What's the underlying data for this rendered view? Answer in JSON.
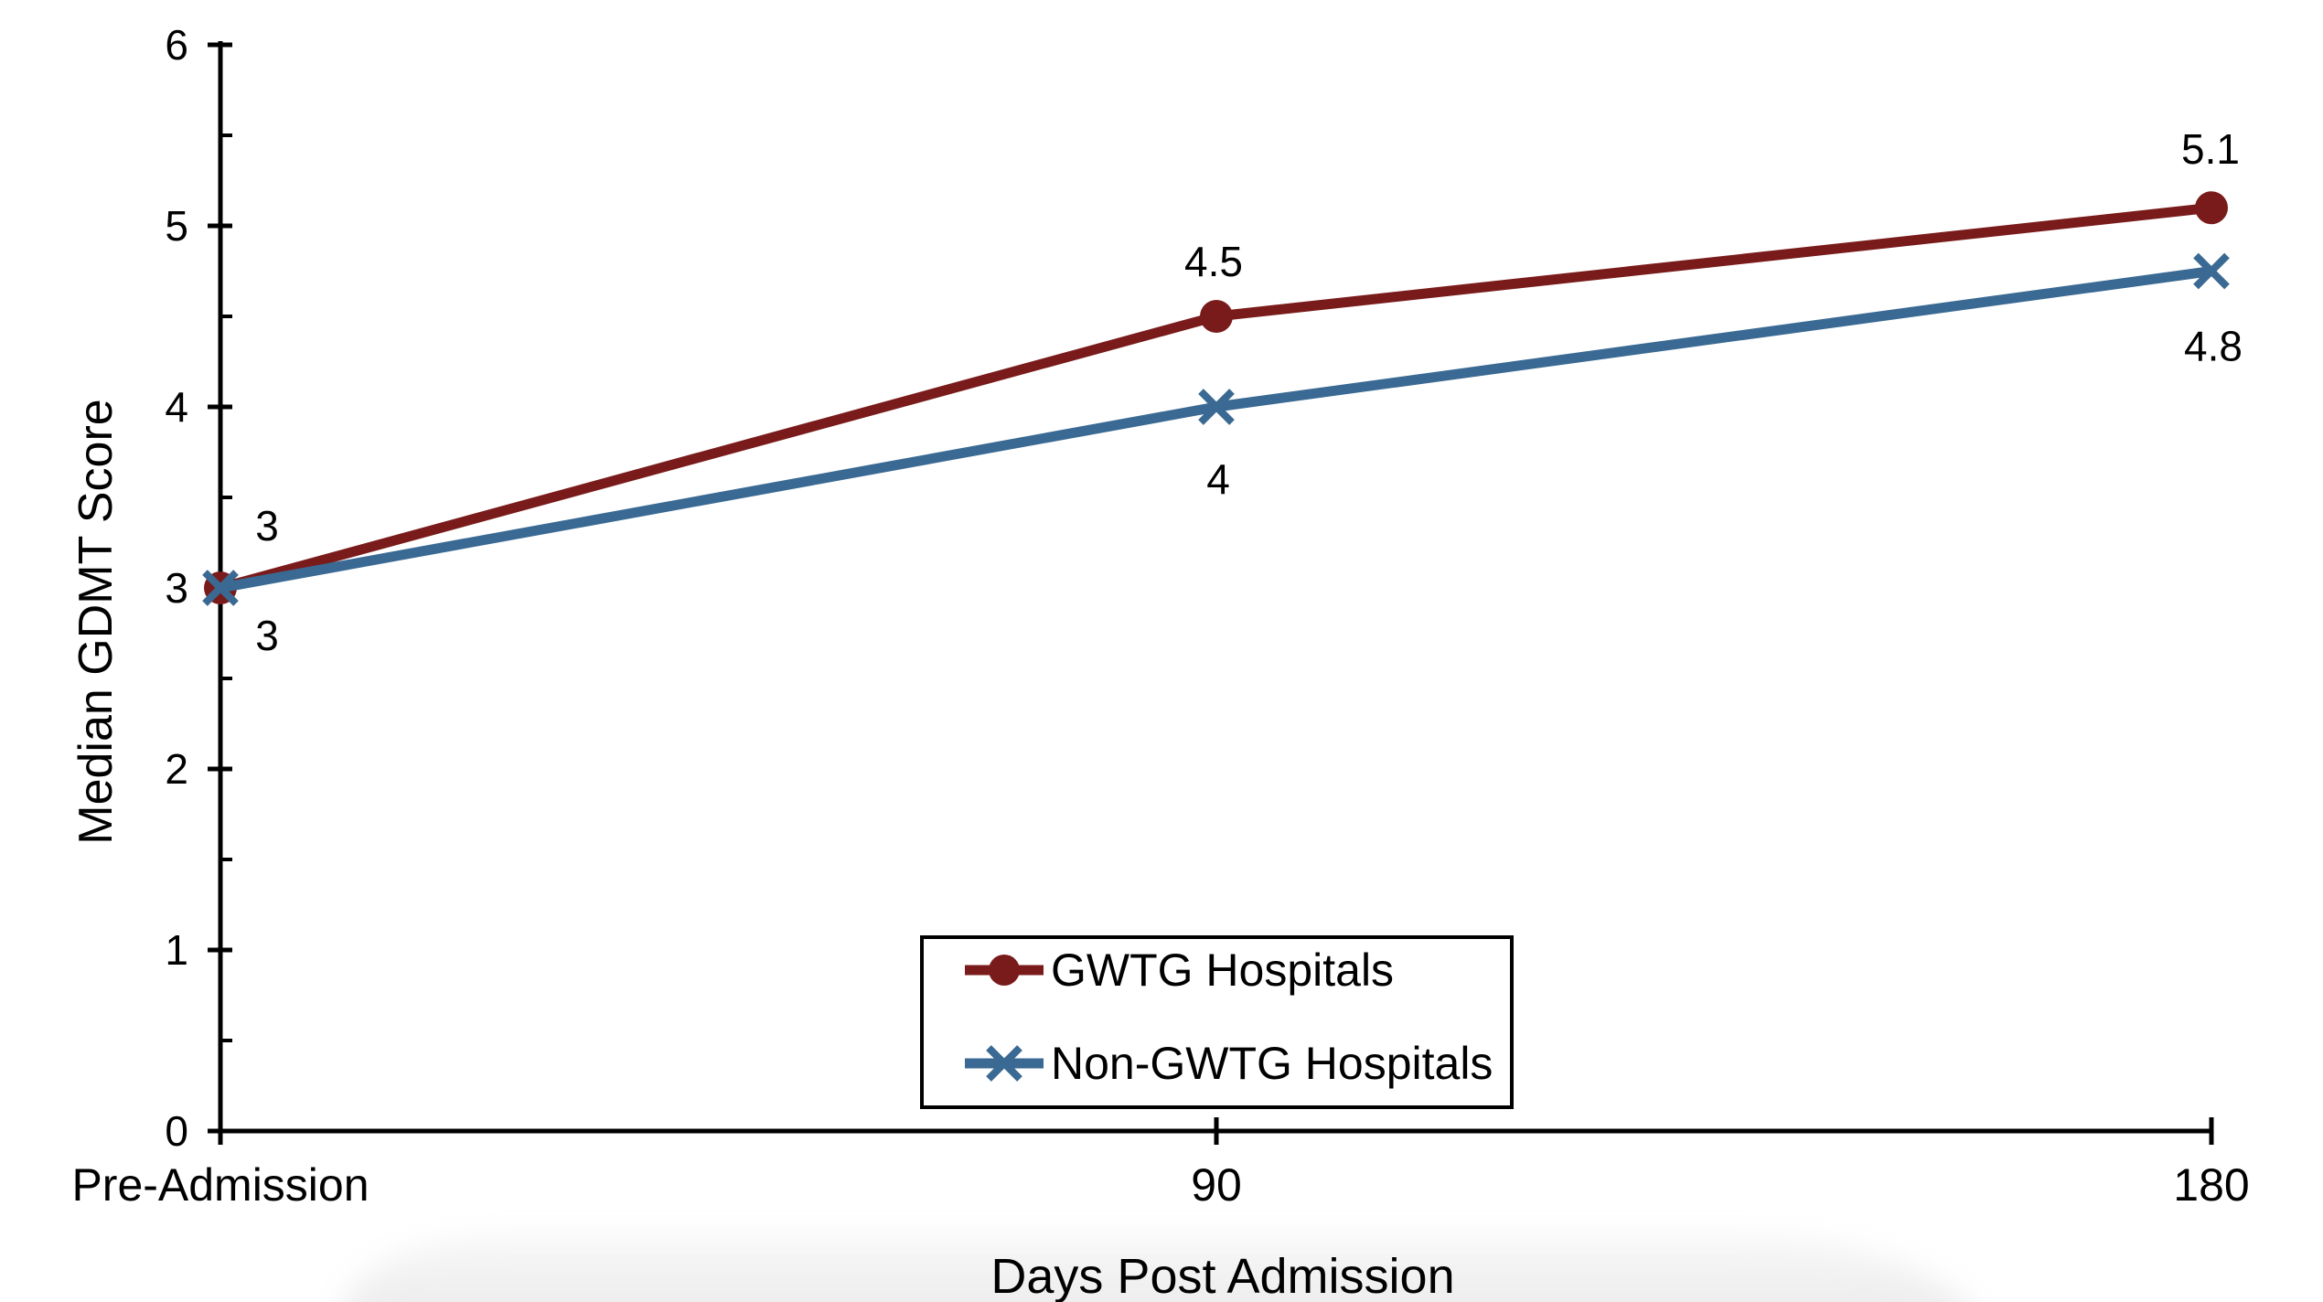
{
  "chart_data": {
    "type": "line",
    "title": "",
    "xlabel": "Days Post Admission",
    "ylabel": "Median GDMT Score",
    "categories": [
      "Pre-Admission",
      "90",
      "180"
    ],
    "ylim": [
      0,
      6
    ],
    "yticks": [
      0,
      1,
      2,
      3,
      4,
      5,
      6
    ],
    "ytick_labels": [
      "0",
      "1",
      "2",
      "3",
      "4",
      "5",
      "6"
    ],
    "minor_ytick_interval": 0.5,
    "grid": false,
    "legend_position": "inside-bottom-center",
    "series": [
      {
        "name": "GWTG Hospitals",
        "color": "#7A1B1B",
        "marker": "circle",
        "values": [
          3,
          4.5,
          5.1
        ],
        "data_labels": [
          "3",
          "4.5",
          "5.1"
        ],
        "label_side": "above"
      },
      {
        "name": "Non-GWTG Hospitals",
        "color": "#3A6A93",
        "marker": "x",
        "values": [
          3,
          4,
          4.8
        ],
        "marker_y": [
          3,
          4,
          4.75
        ],
        "data_labels": [
          "3",
          "4",
          "4.8"
        ],
        "label_side": "below"
      }
    ]
  }
}
